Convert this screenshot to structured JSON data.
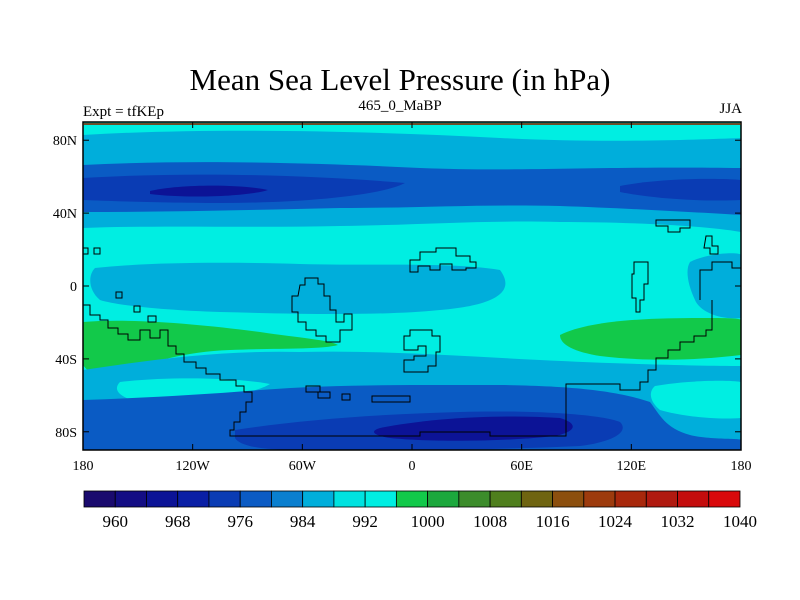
{
  "title": "Mean Sea Level Pressure (in hPa)",
  "left_label": "Expt = tfKEp",
  "center_label": "465_0_MaBP",
  "right_label": "JJA",
  "map": {
    "lat_ticks": [
      {
        "lat": 80,
        "label": "80N"
      },
      {
        "lat": 40,
        "label": "40N"
      },
      {
        "lat": 0,
        "label": "0"
      },
      {
        "lat": -40,
        "label": "40S"
      },
      {
        "lat": -80,
        "label": "80S"
      }
    ],
    "lon_ticks": [
      {
        "lon": -180,
        "label": "180"
      },
      {
        "lon": -120,
        "label": "120W"
      },
      {
        "lon": -60,
        "label": "60W"
      },
      {
        "lon": 0,
        "label": "0"
      },
      {
        "lon": 60,
        "label": "60E"
      },
      {
        "lon": 120,
        "label": "120E"
      },
      {
        "lon": 180,
        "label": "180"
      }
    ],
    "lon_range": [
      -180,
      180
    ],
    "lat_range": [
      -90,
      90
    ]
  },
  "colorbar": {
    "colors": [
      "#1a0a6e",
      "#130d84",
      "#0c1396",
      "#0a1fa5",
      "#0a3cb4",
      "#0b5bc4",
      "#0a7fcf",
      "#00aedb",
      "#00e2e0",
      "#00eee2",
      "#12c94a",
      "#1ca83d",
      "#3c8c2b",
      "#4f7f1d",
      "#6f6411",
      "#8c4f0e",
      "#9d3b0d",
      "#a8280c",
      "#b01a10",
      "#c40d0d",
      "#d9090b"
    ],
    "labels": [
      {
        "index": 2,
        "text": "960"
      },
      {
        "index": 4,
        "text": "968"
      },
      {
        "index": 6,
        "text": "976"
      },
      {
        "index": 8,
        "text": "984"
      },
      {
        "index": 10,
        "text": "992"
      },
      {
        "index": 12,
        "text": "1000"
      },
      {
        "index": 14,
        "text": "1008"
      },
      {
        "index": 16,
        "text": "1016"
      },
      {
        "index": 18,
        "text": "1024"
      },
      {
        "index": 20,
        "text": "1032"
      },
      {
        "index": 22,
        "text": "1040"
      }
    ]
  },
  "field_colors": {
    "pale_cyan": "#00eee2",
    "light_blue": "#00aedb",
    "mid_blue": "#0a5bc4",
    "blue": "#0a3cb4",
    "dark_blue": "#0c1396",
    "green": "#12c94a"
  }
}
